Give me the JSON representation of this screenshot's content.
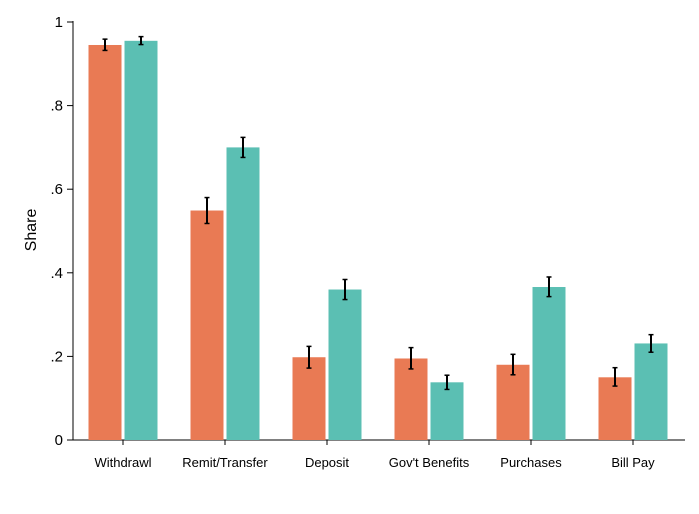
{
  "chart_data": {
    "type": "bar",
    "title": "",
    "xlabel": "",
    "ylabel": "Share",
    "ylim": [
      0,
      1
    ],
    "yticks": [
      {
        "value": 0,
        "label": "0"
      },
      {
        "value": 0.2,
        "label": ".2"
      },
      {
        "value": 0.4,
        "label": ".4"
      },
      {
        "value": 0.6,
        "label": ".6"
      },
      {
        "value": 0.8,
        "label": ".8"
      },
      {
        "value": 1,
        "label": "1"
      }
    ],
    "categories": [
      "Withdrawl",
      "Remit/Transfer",
      "Deposit",
      "Gov't Benefits",
      "Purchases",
      "Bill Pay"
    ],
    "series": [
      {
        "color": "#E97A54",
        "values": [
          0.945,
          0.549,
          0.198,
          0.195,
          0.18,
          0.15
        ],
        "ci_low": [
          0.932,
          0.518,
          0.172,
          0.17,
          0.156,
          0.129
        ],
        "ci_high": [
          0.959,
          0.58,
          0.224,
          0.221,
          0.205,
          0.173
        ]
      },
      {
        "color": "#5BBFB3",
        "values": [
          0.955,
          0.7,
          0.36,
          0.138,
          0.366,
          0.231
        ],
        "ci_low": [
          0.946,
          0.676,
          0.336,
          0.121,
          0.343,
          0.21
        ],
        "ci_high": [
          0.965,
          0.724,
          0.384,
          0.155,
          0.39,
          0.252
        ]
      }
    ],
    "grid": false,
    "legend": "none"
  }
}
